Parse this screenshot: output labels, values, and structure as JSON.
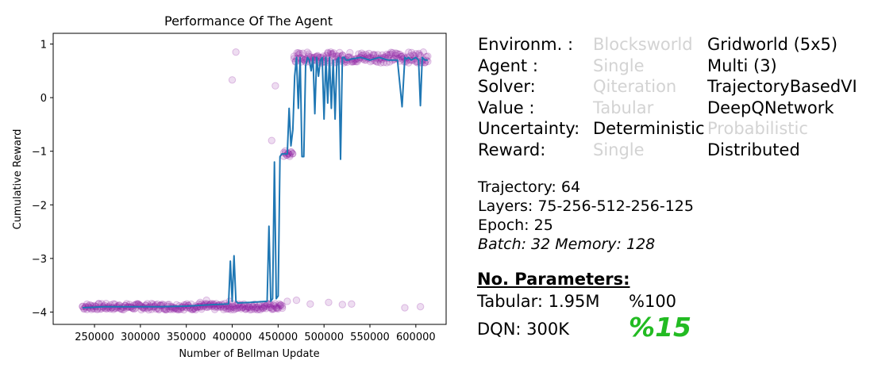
{
  "chart_data": {
    "type": "line",
    "title": "Performance Of The Agent",
    "xlabel": "Number of Bellman Update",
    "ylabel": "Cumulative Reward",
    "xlim": [
      205000,
      633000
    ],
    "ylim": [
      -4.23,
      1.2
    ],
    "xticks": [
      250000,
      300000,
      350000,
      400000,
      450000,
      500000,
      550000,
      600000
    ],
    "xtick_labels": [
      "250000",
      "300000",
      "350000",
      "400000",
      "450000",
      "500000",
      "550000",
      "600000"
    ],
    "yticks": [
      1,
      0,
      -1,
      -2,
      -3,
      -4
    ],
    "ytick_labels": [
      "1",
      "0",
      "−1",
      "−2",
      "−3",
      "−4"
    ],
    "grid": false,
    "series": [
      {
        "kind": "line",
        "color": "#1f77b4",
        "x": [
          237000,
          260000,
          290000,
          320000,
          350000,
          380000,
          396000,
          398000,
          400000,
          402000,
          404000,
          406000,
          420000,
          438000,
          440000,
          442000,
          444000,
          446000,
          448000,
          450000,
          452000,
          454000,
          456000,
          460000,
          462000,
          464000,
          466000,
          468000,
          470000,
          472000,
          474000,
          476000,
          478000,
          480000,
          482000,
          484000,
          486000,
          488000,
          490000,
          492000,
          494000,
          496000,
          498000,
          500000,
          502000,
          504000,
          506000,
          508000,
          510000,
          512000,
          514000,
          516000,
          518000,
          520000,
          522000,
          524000,
          526000,
          530000,
          540000,
          550000,
          560000,
          570000,
          580000,
          585000,
          588000,
          590000,
          592000,
          595000,
          600000,
          603000,
          605000,
          607000,
          610000,
          613000
        ],
        "y": [
          -3.92,
          -3.9,
          -3.9,
          -3.9,
          -3.89,
          -3.86,
          -3.85,
          -3.05,
          -3.8,
          -2.95,
          -3.8,
          -3.83,
          -3.82,
          -3.8,
          -2.4,
          -3.8,
          -3.75,
          -1.2,
          -3.75,
          -3.7,
          -1.1,
          -1.05,
          -1.05,
          -1.05,
          -0.2,
          -0.9,
          -0.6,
          0.4,
          0.75,
          -0.2,
          0.75,
          -1.1,
          -1.1,
          0.6,
          0.75,
          0.7,
          0.5,
          0.75,
          -0.3,
          0.75,
          0.4,
          0.7,
          0.75,
          -0.4,
          0.75,
          -0.1,
          0.75,
          -0.2,
          0.7,
          -0.4,
          0.7,
          0.75,
          -1.15,
          0.75,
          0.75,
          0.7,
          0.7,
          0.72,
          0.75,
          0.7,
          0.75,
          0.7,
          0.7,
          -0.17,
          0.75,
          0.72,
          0.75,
          0.7,
          0.75,
          0.7,
          -0.15,
          0.75,
          0.7,
          0.7
        ]
      },
      {
        "kind": "scatter",
        "color": "#8b1a9e",
        "opacity": 0.15,
        "x": [
          400000,
          404000,
          443000,
          447000,
          530000,
          588000,
          605000,
          397000,
          380000,
          372000,
          365000,
          460000,
          470000,
          485000,
          505000,
          520000
        ],
        "y": [
          0.33,
          0.85,
          -0.8,
          0.22,
          -3.85,
          -3.92,
          -3.9,
          -3.8,
          -3.85,
          -3.78,
          -3.82,
          -3.8,
          -3.78,
          -3.85,
          -3.82,
          -3.86
        ]
      }
    ]
  },
  "info": {
    "config_rows": [
      {
        "label": "Environm. :",
        "opt1": "Blocksworld",
        "opt2": "Gridworld (5x5)",
        "selected": 2
      },
      {
        "label": "Agent :",
        "opt1": "Single",
        "opt2": "Multi (3)",
        "selected": 2
      },
      {
        "label": "Solver:",
        "opt1": "Qiteration",
        "opt2": "TrajectoryBasedVI",
        "selected": 2
      },
      {
        "label": "Value :",
        "opt1": "Tabular",
        "opt2": "DeepQNetwork",
        "selected": 2
      },
      {
        "label": "Uncertainty:",
        "opt1": "Deterministic",
        "opt2": "Probabilistic",
        "selected": 1
      },
      {
        "label": "Reward:",
        "opt1": "Single",
        "opt2": "Distributed",
        "selected": 2
      }
    ],
    "trajectory": "Trajectory: 64",
    "layers": "Layers: 75-256-512-256-125",
    "epoch": "Epoch: 25",
    "batch": "Batch: 32 Memory: 128",
    "params_title": "No. Parameters:",
    "tabular_label": "Tabular: 1.95M",
    "tabular_pct": "%100",
    "dqn_label": "DQN: 300K",
    "dqn_pct": "%15",
    "highlight_color": "#22bb22"
  }
}
